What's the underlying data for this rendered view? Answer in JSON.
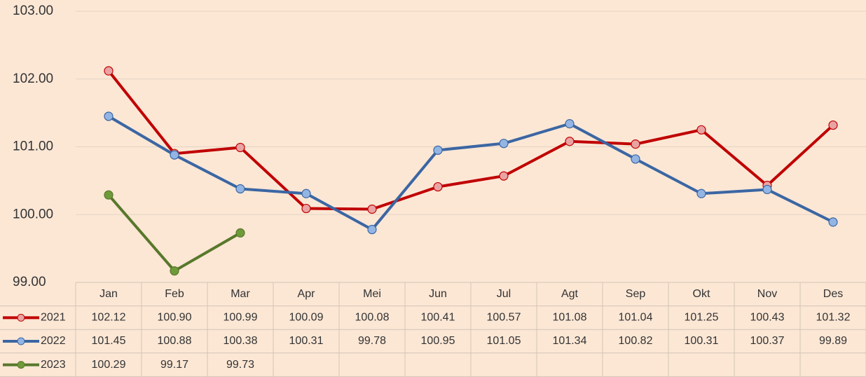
{
  "chart_data": {
    "type": "line",
    "categories": [
      "Jan",
      "Feb",
      "Mar",
      "Apr",
      "Mei",
      "Jun",
      "Jul",
      "Agt",
      "Sep",
      "Okt",
      "Nov",
      "Des"
    ],
    "series": [
      {
        "name": "2021",
        "color": "#c00000",
        "marker_color": "#e9a3a3",
        "values": [
          102.12,
          100.9,
          100.99,
          100.09,
          100.08,
          100.41,
          100.57,
          101.08,
          101.04,
          101.25,
          100.43,
          101.32
        ],
        "value_labels": [
          "102.12",
          "100.90",
          "100.99",
          "100.09",
          "100.08",
          "100.41",
          "100.57",
          "101.08",
          "101.04",
          "101.25",
          "100.43",
          "101.32"
        ]
      },
      {
        "name": "2022",
        "color": "#3b66a3",
        "marker_color": "#93b5e4",
        "values": [
          101.45,
          100.88,
          100.38,
          100.31,
          99.78,
          100.95,
          101.05,
          101.34,
          100.82,
          100.31,
          100.37,
          99.89
        ],
        "value_labels": [
          "101.45",
          "100.88",
          "100.38",
          "100.31",
          "99.78",
          "100.95",
          "101.05",
          "101.34",
          "100.82",
          "100.31",
          "100.37",
          "99.89"
        ]
      },
      {
        "name": "2023",
        "color": "#58782b",
        "marker_color": "#6f9a3a",
        "values": [
          100.29,
          99.17,
          99.73,
          null,
          null,
          null,
          null,
          null,
          null,
          null,
          null,
          null
        ],
        "value_labels": [
          "100.29",
          "99.17",
          "99.73",
          null,
          null,
          null,
          null,
          null,
          null,
          null,
          null,
          null
        ]
      }
    ],
    "ylim": [
      99,
      103
    ],
    "yticks": [
      {
        "value": 99,
        "label": "99.00"
      },
      {
        "value": 100,
        "label": "100.00"
      },
      {
        "value": 101,
        "label": "101.00"
      },
      {
        "value": 102,
        "label": "102.00"
      },
      {
        "value": 103,
        "label": "103.00"
      }
    ],
    "grid": true
  }
}
